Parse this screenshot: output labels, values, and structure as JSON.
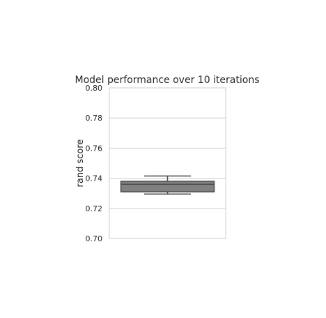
{
  "chart_data": {
    "type": "box",
    "title": "Model performance over 10 iterations",
    "xlabel": "",
    "ylabel": "rand score",
    "ylim": [
      0.7,
      0.8
    ],
    "yticks": [
      "0.70",
      "0.72",
      "0.74",
      "0.76",
      "0.78",
      "0.80"
    ],
    "grid": true,
    "series": [
      {
        "whisker_low": 0.7295,
        "q1": 0.731,
        "median": 0.736,
        "q3": 0.738,
        "whisker_high": 0.7415,
        "color": "#808080"
      }
    ]
  }
}
